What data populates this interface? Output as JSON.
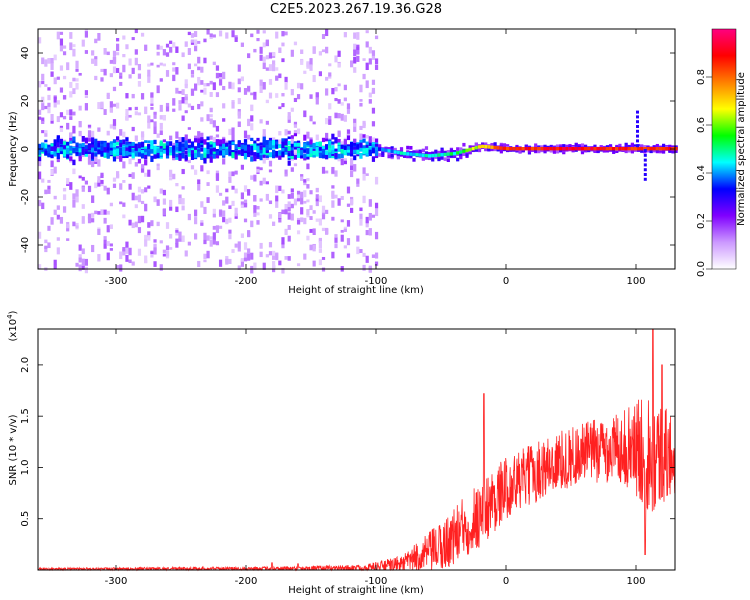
{
  "title": "C2E5.2023.267.19.36.G28",
  "chart_data": [
    {
      "type": "heatmap",
      "xlabel": "Height of straight line (km)",
      "ylabel": "Frequency (Hz)",
      "xlim": [
        -360,
        130
      ],
      "ylim": [
        -50,
        50
      ],
      "xticks": [
        -300,
        -200,
        -100,
        0,
        100
      ],
      "yticks": [
        -40,
        -20,
        0,
        20,
        40
      ],
      "colorbar": {
        "label": "Normalized spectral amplitude",
        "range": [
          0.0,
          1.0
        ],
        "ticks": [
          "0.0",
          "0.2",
          "0.4",
          "0.6",
          "0.8"
        ],
        "colormap": [
          "#ffffff",
          "#cc99ff",
          "#8000ff",
          "#0000ff",
          "#00ffff",
          "#00ff00",
          "#ffff00",
          "#ff8000",
          "#ff0000",
          "#ff0080"
        ]
      },
      "features": {
        "noise_region_x": [
          -360,
          -100
        ],
        "noise_spread_hz": 50,
        "carrier_track": [
          {
            "x": -100,
            "f": 0,
            "amp": 0.35
          },
          {
            "x": -80,
            "f": -2,
            "amp": 0.45
          },
          {
            "x": -60,
            "f": -3,
            "amp": 0.45
          },
          {
            "x": -40,
            "f": -2,
            "amp": 0.5
          },
          {
            "x": -20,
            "f": 1,
            "amp": 0.7
          },
          {
            "x": 0,
            "f": 0,
            "amp": 0.85
          },
          {
            "x": 50,
            "f": 0,
            "amp": 0.9
          },
          {
            "x": 100,
            "f": 0,
            "amp": 0.85
          },
          {
            "x": 130,
            "f": 0,
            "amp": 0.85
          }
        ],
        "spike_at_x": 100
      }
    },
    {
      "type": "line",
      "xlabel": "Height of straight line (km)",
      "ylabel": "SNR (10 * v/v)",
      "yscale_note": "(x10",
      "yscale_exp": "4",
      "yscale_close": ")",
      "xlim": [
        -360,
        130
      ],
      "ylim": [
        0,
        2.35
      ],
      "xticks": [
        -300,
        -200,
        -100,
        0,
        100
      ],
      "yticks": [
        "0.5",
        "1.0",
        "1.5",
        "2.0"
      ],
      "color": "#ff2020",
      "envelope": [
        {
          "x": -360,
          "mean": 0.01,
          "spread": 0.01
        },
        {
          "x": -200,
          "mean": 0.015,
          "spread": 0.015
        },
        {
          "x": -110,
          "mean": 0.02,
          "spread": 0.03
        },
        {
          "x": -80,
          "mean": 0.06,
          "spread": 0.08
        },
        {
          "x": -50,
          "mean": 0.22,
          "spread": 0.25
        },
        {
          "x": -20,
          "mean": 0.55,
          "spread": 0.35
        },
        {
          "x": 0,
          "mean": 0.8,
          "spread": 0.3
        },
        {
          "x": 30,
          "mean": 1.0,
          "spread": 0.3
        },
        {
          "x": 60,
          "mean": 1.15,
          "spread": 0.3
        },
        {
          "x": 90,
          "mean": 1.2,
          "spread": 0.35
        },
        {
          "x": 110,
          "mean": 1.15,
          "spread": 0.6
        },
        {
          "x": 130,
          "mean": 1.1,
          "spread": 0.4
        }
      ],
      "peaks": [
        {
          "x": -180,
          "y": 0.07
        },
        {
          "x": -160,
          "y": 0.06
        },
        {
          "x": -17,
          "y": 1.72
        },
        {
          "x": 113,
          "y": 2.35
        },
        {
          "x": 120,
          "y": 2.0
        },
        {
          "x": 107,
          "y": 0.15
        }
      ]
    }
  ]
}
